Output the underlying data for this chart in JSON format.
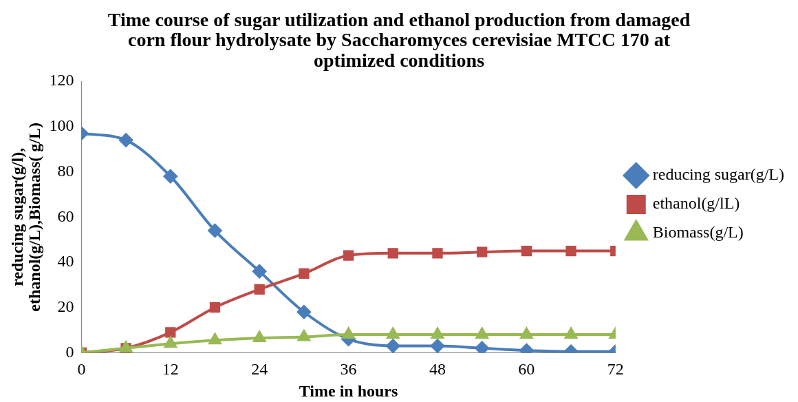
{
  "chart_data": {
    "type": "line",
    "title": "Time course of sugar utilization and ethanol production from damaged corn flour hydrolysate by Saccharomyces cerevisiae MTCC 170 at optimized conditions",
    "xlabel": "Time in hours",
    "ylabel": "reducing sugar(g/l),ethanol(g/L),Biomass( g/L)",
    "x": [
      0,
      6,
      12,
      18,
      24,
      30,
      36,
      42,
      48,
      54,
      60,
      66,
      72
    ],
    "xlim": [
      0,
      72
    ],
    "xticks": [
      0,
      12,
      24,
      36,
      48,
      60,
      72
    ],
    "ylim": [
      0,
      120
    ],
    "yticks": [
      0,
      20,
      40,
      60,
      80,
      100,
      120
    ],
    "grid": false,
    "legend": "right",
    "series": [
      {
        "name": "reducing sugar(g/L)",
        "color": "#4a7ebb",
        "marker": "diamond",
        "values": [
          97,
          94,
          78,
          54,
          36,
          18,
          6,
          3,
          3,
          2,
          1,
          0.5,
          0.5
        ]
      },
      {
        "name": "ethanol(g/lL)",
        "color": "#be4b48",
        "marker": "square",
        "values": [
          0,
          2,
          9,
          20,
          28,
          35,
          43,
          44,
          44,
          44.5,
          45,
          45,
          45
        ]
      },
      {
        "name": "Biomass(g/L)",
        "color": "#98b954",
        "marker": "triangle",
        "values": [
          0,
          2,
          4,
          5.5,
          6.5,
          7,
          8,
          8,
          8,
          8,
          8,
          8,
          8
        ]
      }
    ]
  }
}
